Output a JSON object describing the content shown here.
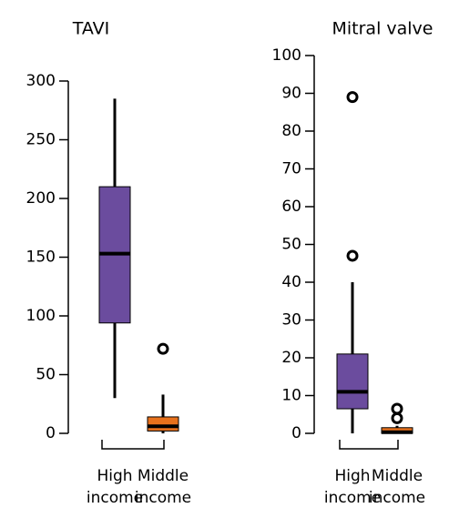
{
  "chart_data": [
    {
      "type": "box",
      "title": "TAVI",
      "categories": [
        "High income",
        "Middle income"
      ],
      "colors": [
        "#6b4c9e",
        "#e8711c"
      ],
      "boxes": [
        {
          "min": 30,
          "q1": 94,
          "median": 153,
          "q3": 210,
          "max": 285,
          "outliers": []
        },
        {
          "min": 0,
          "q1": 2,
          "median": 6,
          "q3": 14,
          "max": 33,
          "outliers": [
            72
          ]
        }
      ],
      "ylim": [
        0,
        300
      ],
      "yticks": [
        0,
        50,
        100,
        150,
        200,
        250,
        300
      ]
    },
    {
      "type": "box",
      "title": "Mitral valve",
      "categories": [
        "High income",
        "Middle income"
      ],
      "colors": [
        "#6b4c9e",
        "#e8711c"
      ],
      "boxes": [
        {
          "min": 0,
          "q1": 6.5,
          "median": 11,
          "q3": 21,
          "max": 40,
          "outliers": [
            47,
            89
          ]
        },
        {
          "min": 0,
          "q1": 0,
          "median": 0.3,
          "q3": 1.5,
          "max": 2,
          "outliers": [
            4,
            6.5
          ]
        }
      ],
      "ylim": [
        0,
        100
      ],
      "yticks": [
        0,
        10,
        20,
        30,
        40,
        50,
        60,
        70,
        80,
        90,
        100
      ]
    }
  ]
}
